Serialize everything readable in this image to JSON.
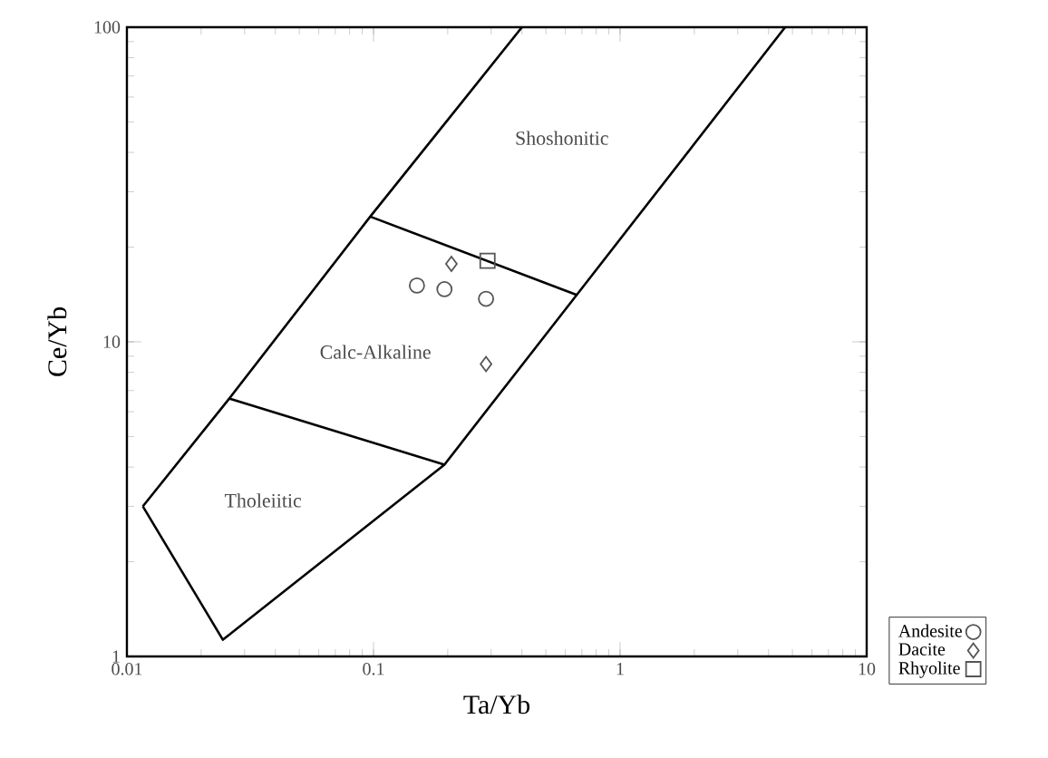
{
  "chart_data": {
    "type": "scatter",
    "xlabel": "Ta/Yb",
    "ylabel": "Ce/Yb",
    "log": "xy",
    "grid": false,
    "legend": "bottom right",
    "xlim": [
      0.01,
      10
    ],
    "ylim": [
      1,
      100
    ],
    "xticks": [
      0.01,
      0.1,
      1,
      10
    ],
    "yticks": [
      1,
      10,
      100
    ],
    "series": [
      {
        "type": "line",
        "color": "#000000",
        "marker": "none",
        "x": [
          0.0116,
          0.026,
          0.097,
          0.4
        ],
        "values": [
          3,
          6.6,
          25,
          100
        ]
      },
      {
        "type": "line",
        "color": "#000000",
        "marker": "none",
        "x": [
          0.0116,
          0.0245,
          0.194,
          0.667,
          4.67
        ],
        "values": [
          3,
          1.13,
          4.07,
          14.1,
          100
        ]
      },
      {
        "type": "line",
        "color": "#000000",
        "marker": "none",
        "x": [
          0.026,
          0.194
        ],
        "values": [
          6.6,
          4.07
        ]
      },
      {
        "type": "line",
        "color": "#000000",
        "marker": "none",
        "x": [
          0.097,
          0.667
        ],
        "values": [
          25,
          14.1
        ]
      },
      {
        "name": "Andesite",
        "color": "#555555",
        "marker": "circle",
        "x": [
          0.15,
          0.194,
          0.286
        ],
        "values": [
          15.1,
          14.7,
          13.7
        ]
      },
      {
        "name": "Dacite",
        "color": "#555555",
        "marker": "diamond",
        "x": [
          0.207,
          0.286
        ],
        "values": [
          17.7,
          8.5
        ]
      },
      {
        "name": "Rhyolite",
        "color": "#555555",
        "marker": "square",
        "x": [
          0.29
        ],
        "values": [
          18.1
        ]
      }
    ],
    "annotations": [
      "Shoshonitic",
      "Calc-Alkaline",
      "Tholeiitic"
    ]
  }
}
